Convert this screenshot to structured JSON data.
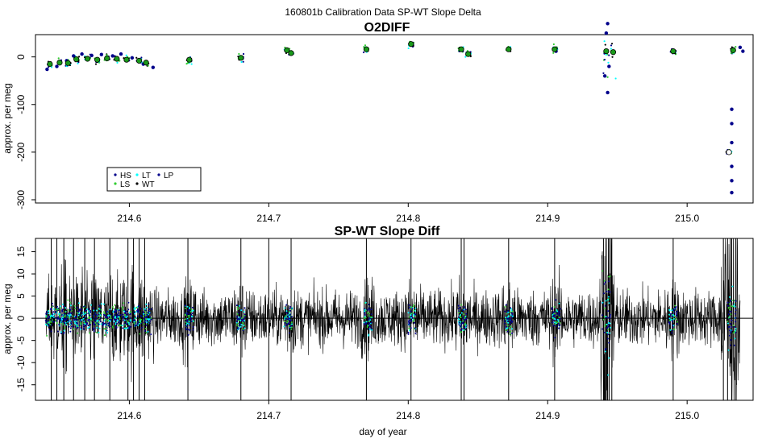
{
  "suptitle": "160801b   Calibration Data SP-WT Slope Delta",
  "colors": {
    "HS": "#00008b",
    "LS": "#32cd32",
    "LT": "#00ffff",
    "WT": "#000000",
    "LP": "#00008b",
    "point_fill": "#1a9a1a"
  },
  "chart_data": [
    {
      "type": "scatter",
      "title": "O2DIFF",
      "xlabel": "",
      "ylabel": "approx. per meg",
      "xlim": [
        214.535,
        215.045
      ],
      "ylim": [
        -300,
        40
      ],
      "x_ticks": [
        214.6,
        214.7,
        214.8,
        214.9,
        215.0
      ],
      "x_tick_labels": [
        "214.6",
        "214.7",
        "214.8",
        "214.9",
        "215.0"
      ],
      "y_ticks": [
        -300,
        -200,
        -100,
        0
      ],
      "y_tick_labels": [
        "-300",
        "-200",
        "-100",
        "0"
      ],
      "grid": false,
      "legend": {
        "position": "bottom-left",
        "entries": [
          "HS",
          "LS",
          "LT",
          "WT",
          "LP"
        ]
      },
      "group_means": [
        {
          "x": 214.543,
          "y": -15
        },
        {
          "x": 214.55,
          "y": -12
        },
        {
          "x": 214.556,
          "y": -13
        },
        {
          "x": 214.562,
          "y": -5
        },
        {
          "x": 214.57,
          "y": -4
        },
        {
          "x": 214.577,
          "y": -6
        },
        {
          "x": 214.584,
          "y": -3
        },
        {
          "x": 214.591,
          "y": -4
        },
        {
          "x": 214.598,
          "y": -6
        },
        {
          "x": 214.607,
          "y": -8
        },
        {
          "x": 214.612,
          "y": -12
        },
        {
          "x": 214.643,
          "y": -6
        },
        {
          "x": 214.68,
          "y": -2
        },
        {
          "x": 214.713,
          "y": 14
        },
        {
          "x": 214.716,
          "y": 8
        },
        {
          "x": 214.77,
          "y": 16
        },
        {
          "x": 214.802,
          "y": 27
        },
        {
          "x": 214.838,
          "y": 16
        },
        {
          "x": 214.843,
          "y": 6
        },
        {
          "x": 214.872,
          "y": 16
        },
        {
          "x": 214.905,
          "y": 16
        },
        {
          "x": 214.942,
          "y": 12
        },
        {
          "x": 214.947,
          "y": 10
        },
        {
          "x": 214.99,
          "y": 12
        },
        {
          "x": 215.03,
          "y": -200
        },
        {
          "x": 215.033,
          "y": 14
        }
      ],
      "dot_series": [
        {
          "x": 214.541,
          "y": -26
        },
        {
          "x": 214.548,
          "y": -20
        },
        {
          "x": 214.555,
          "y": -8
        },
        {
          "x": 214.56,
          "y": 2
        },
        {
          "x": 214.566,
          "y": 6
        },
        {
          "x": 214.573,
          "y": 3
        },
        {
          "x": 214.58,
          "y": 5
        },
        {
          "x": 214.588,
          "y": 2
        },
        {
          "x": 214.594,
          "y": 6
        },
        {
          "x": 214.602,
          "y": -2
        },
        {
          "x": 214.61,
          "y": -15
        },
        {
          "x": 214.617,
          "y": -22
        },
        {
          "x": 214.681,
          "y": -3
        },
        {
          "x": 214.906,
          "y": 12
        },
        {
          "x": 214.991,
          "y": 12
        },
        {
          "x": 215.032,
          "y": -110
        },
        {
          "x": 215.032,
          "y": -140
        },
        {
          "x": 215.032,
          "y": -180
        },
        {
          "x": 215.032,
          "y": -230
        },
        {
          "x": 215.032,
          "y": -260
        },
        {
          "x": 215.032,
          "y": -285
        },
        {
          "x": 215.038,
          "y": 20
        },
        {
          "x": 215.04,
          "y": 12
        },
        {
          "x": 214.943,
          "y": 70
        },
        {
          "x": 214.942,
          "y": 50
        },
        {
          "x": 214.941,
          "y": -40
        },
        {
          "x": 214.943,
          "y": -75
        },
        {
          "x": 214.944,
          "y": -20
        }
      ]
    },
    {
      "type": "line",
      "title": "SP-WT Slope Diff",
      "xlabel": "day of year",
      "ylabel": "approx. per meg",
      "xlim": [
        214.535,
        215.045
      ],
      "ylim": [
        -18.5,
        18
      ],
      "x_ticks": [
        214.6,
        214.7,
        214.8,
        214.9,
        215.0
      ],
      "x_tick_labels": [
        "214.6",
        "214.7",
        "214.8",
        "214.9",
        "215.0"
      ],
      "y_ticks": [
        -15,
        -10,
        -5,
        0,
        5,
        10,
        15
      ],
      "y_tick_labels": [
        "-15",
        "-10",
        "-5",
        "0",
        "5",
        "10",
        "15"
      ],
      "reference_line": 0,
      "noise_amplitude": 3.2,
      "series_x_range": [
        214.54,
        215.038
      ],
      "calibration_windows": [
        214.543,
        214.55,
        214.556,
        214.563,
        214.57,
        214.577,
        214.584,
        214.591,
        214.598,
        214.606,
        214.613,
        214.643,
        214.68,
        214.714,
        214.771,
        214.803,
        214.839,
        214.872,
        214.906,
        214.942,
        214.99,
        215.032
      ],
      "spikes": [
        214.544,
        214.548,
        214.553,
        214.56,
        214.568,
        214.575,
        214.586,
        214.599,
        214.603,
        214.607,
        214.611,
        214.642,
        214.68,
        214.7,
        214.716,
        214.77,
        214.802,
        214.838,
        214.84,
        214.872,
        214.905,
        214.94,
        214.942,
        214.944,
        214.946,
        214.99,
        215.026,
        215.029,
        215.032,
        215.035
      ]
    }
  ]
}
